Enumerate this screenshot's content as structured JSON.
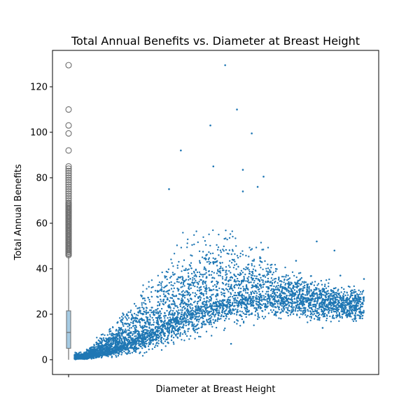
{
  "chart_data": {
    "type": "scatter",
    "title": "Total Annual Benefits vs. Diameter at Breast Height",
    "xlabel": "Diameter at Breast Height",
    "ylabel": "Total Annual Benefits",
    "ylim": [
      -6.5,
      136
    ],
    "yticks": [
      0,
      20,
      40,
      60,
      80,
      100,
      120
    ],
    "xtick_labels": [
      ""
    ],
    "grid": false,
    "legend": "none",
    "colors": {
      "points": "#1f77b4",
      "box_fill": "#a6cbe3",
      "box_edge": "#6e6e6e"
    },
    "boxplot": {
      "min": 0,
      "q1": 5,
      "median": 12,
      "q3": 21.5,
      "whisker_high": 45.5,
      "outliers": [
        46,
        46.5,
        47,
        47.5,
        48,
        48.5,
        49,
        49.5,
        50,
        50.5,
        51,
        51.5,
        52,
        52.5,
        53,
        53.5,
        54,
        54.5,
        55,
        55.5,
        56,
        56.5,
        57,
        57.5,
        58,
        58.5,
        59,
        59.5,
        60,
        60.5,
        61,
        61.5,
        62,
        62.5,
        63,
        63.5,
        64,
        64.5,
        65,
        65.5,
        66,
        66.5,
        67,
        67.5,
        68,
        68.5,
        69,
        70,
        71,
        72,
        73,
        74,
        75,
        76,
        77,
        78,
        79,
        80,
        81,
        82,
        83,
        84,
        85,
        92,
        99.5,
        103,
        110,
        129.5
      ]
    },
    "scatter_notable_points": [
      {
        "x": 0.53,
        "y": 129.5
      },
      {
        "x": 0.57,
        "y": 110
      },
      {
        "x": 0.48,
        "y": 103
      },
      {
        "x": 0.62,
        "y": 99.5
      },
      {
        "x": 0.38,
        "y": 92
      },
      {
        "x": 0.49,
        "y": 85
      },
      {
        "x": 0.59,
        "y": 83.5
      },
      {
        "x": 0.66,
        "y": 80.5
      },
      {
        "x": 0.64,
        "y": 76
      },
      {
        "x": 0.59,
        "y": 74
      },
      {
        "x": 0.34,
        "y": 75
      },
      {
        "x": 0.84,
        "y": 52
      },
      {
        "x": 0.9,
        "y": 48
      },
      {
        "x": 1.0,
        "y": 35.5
      },
      {
        "x": 0.92,
        "y": 37
      },
      {
        "x": 0.94,
        "y": 26
      },
      {
        "x": 0.77,
        "y": 43.5
      },
      {
        "x": 0.86,
        "y": 30
      },
      {
        "x": 0.82,
        "y": 20
      },
      {
        "x": 0.86,
        "y": 14
      },
      {
        "x": 0.55,
        "y": 7
      }
    ],
    "scatter_density_profile": {
      "x_start": 0.02,
      "x_end": 1.0,
      "trend_y_at_x": [
        [
          0.05,
          0.8
        ],
        [
          0.15,
          5
        ],
        [
          0.25,
          11
        ],
        [
          0.35,
          18
        ],
        [
          0.45,
          24
        ],
        [
          0.55,
          27
        ],
        [
          0.65,
          28
        ],
        [
          0.75,
          28
        ],
        [
          0.85,
          26
        ],
        [
          0.95,
          24
        ]
      ],
      "upper_envelope": [
        [
          0.05,
          4
        ],
        [
          0.15,
          20
        ],
        [
          0.25,
          40
        ],
        [
          0.35,
          60
        ],
        [
          0.45,
          70
        ],
        [
          0.55,
          72
        ],
        [
          0.65,
          60
        ],
        [
          0.75,
          45
        ],
        [
          0.85,
          40
        ],
        [
          0.95,
          36
        ]
      ],
      "lower_envelope": [
        [
          0.05,
          0
        ],
        [
          0.15,
          0
        ],
        [
          0.25,
          1
        ],
        [
          0.35,
          4
        ],
        [
          0.45,
          8
        ],
        [
          0.55,
          12
        ],
        [
          0.65,
          15
        ],
        [
          0.75,
          16
        ],
        [
          0.85,
          14
        ],
        [
          0.95,
          14
        ]
      ]
    }
  }
}
